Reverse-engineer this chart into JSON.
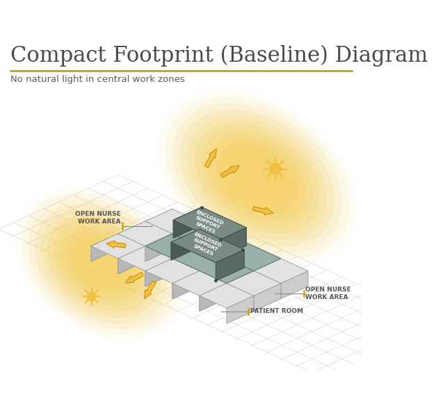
{
  "title": "Compact Footprint (Baseline) Diagram",
  "subtitle": "No natural light in central work zones",
  "title_color": "#4a4a4a",
  "subtitle_color": "#5a5a5a",
  "accent_line_color": "#c8a020",
  "background_color": "#ffffff",
  "tile_top": "#e2e2e2",
  "tile_left": "#b8b8b8",
  "tile_right": "#cccccc",
  "tile_edge": "#999999",
  "inner_fill": "#9ab0aa",
  "enclosed_top": "#7a8a84",
  "enclosed_left": "#4a5a54",
  "enclosed_right": "#5a6a64",
  "enclosed_edge": "#3a4a44",
  "sun_color": "#f0c040",
  "glow_color": "#f5d060",
  "arrow_fill": "#f0c040",
  "arrow_edge": "#c89010",
  "label_color": "#555555",
  "annot_line": "#888888",
  "annot_tick": "#c8a020",
  "labels": {
    "open_nurse_left": "OPEN NURSE\nWORK AREA",
    "open_nurse_right": "OPEN NURSE\nWORK AREA",
    "patient_room": "PATIENT ROOM",
    "enclosed1": "ENCLOSED\nSUPPORT\nSPACES",
    "enclosed2": "ENCLOSED\nSUPPORT\nSPACES"
  }
}
